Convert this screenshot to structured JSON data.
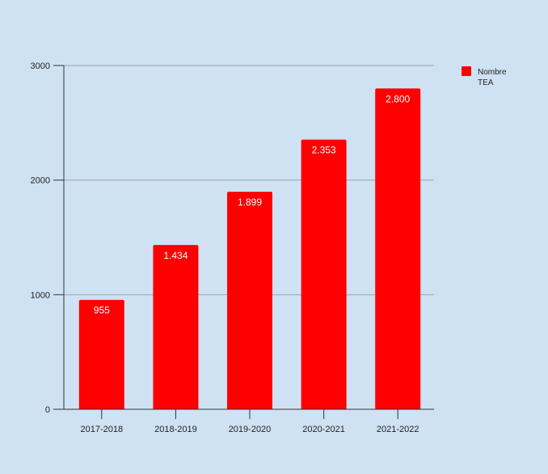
{
  "chart_data": {
    "type": "bar",
    "title": "",
    "xlabel": "",
    "ylabel": "",
    "categories": [
      "2017-2018",
      "2018-2019",
      "2019-2020",
      "2020-2021",
      "2021-2022"
    ],
    "series": [
      {
        "name": "Nombre TEA",
        "values": [
          955,
          1434,
          1899,
          2353,
          2800
        ],
        "labels": [
          "955",
          "1.434",
          "1.899",
          "2.353",
          "2.800"
        ],
        "color": "#ff0000"
      }
    ],
    "ylim": [
      0,
      3000
    ],
    "yticks": [
      0,
      1000,
      2000,
      3000
    ],
    "grid": true,
    "legend": "top-right",
    "legend_lines": [
      "Nombre",
      "TEA"
    ],
    "background": "#cfe2f3"
  }
}
